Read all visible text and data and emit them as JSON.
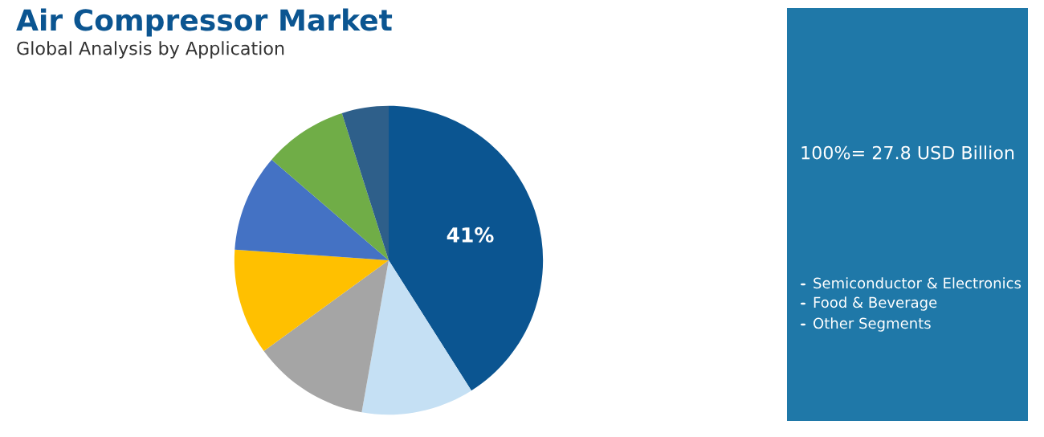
{
  "chart_data": {
    "type": "pie",
    "title": "Air Compressor Market",
    "subtitle": "Global Analysis by Application",
    "categories": [
      null,
      null,
      null,
      null,
      null,
      null,
      null
    ],
    "values": [
      41,
      11.8,
      12.2,
      11.1,
      10.2,
      8.8,
      4.9
    ],
    "colors": [
      "#0b5591",
      "#c5e0f4",
      "#a5a5a5",
      "#ffc000",
      "#4472c4",
      "#70ad47",
      "#2e5f8a"
    ],
    "value_labels": [
      "41%",
      null,
      null,
      null,
      null,
      null,
      null
    ],
    "annotations": [
      "100%= 27.8 USD Billion",
      "Semiconductor & Electronics",
      "Food & Beverage",
      "Other Segments"
    ]
  }
}
